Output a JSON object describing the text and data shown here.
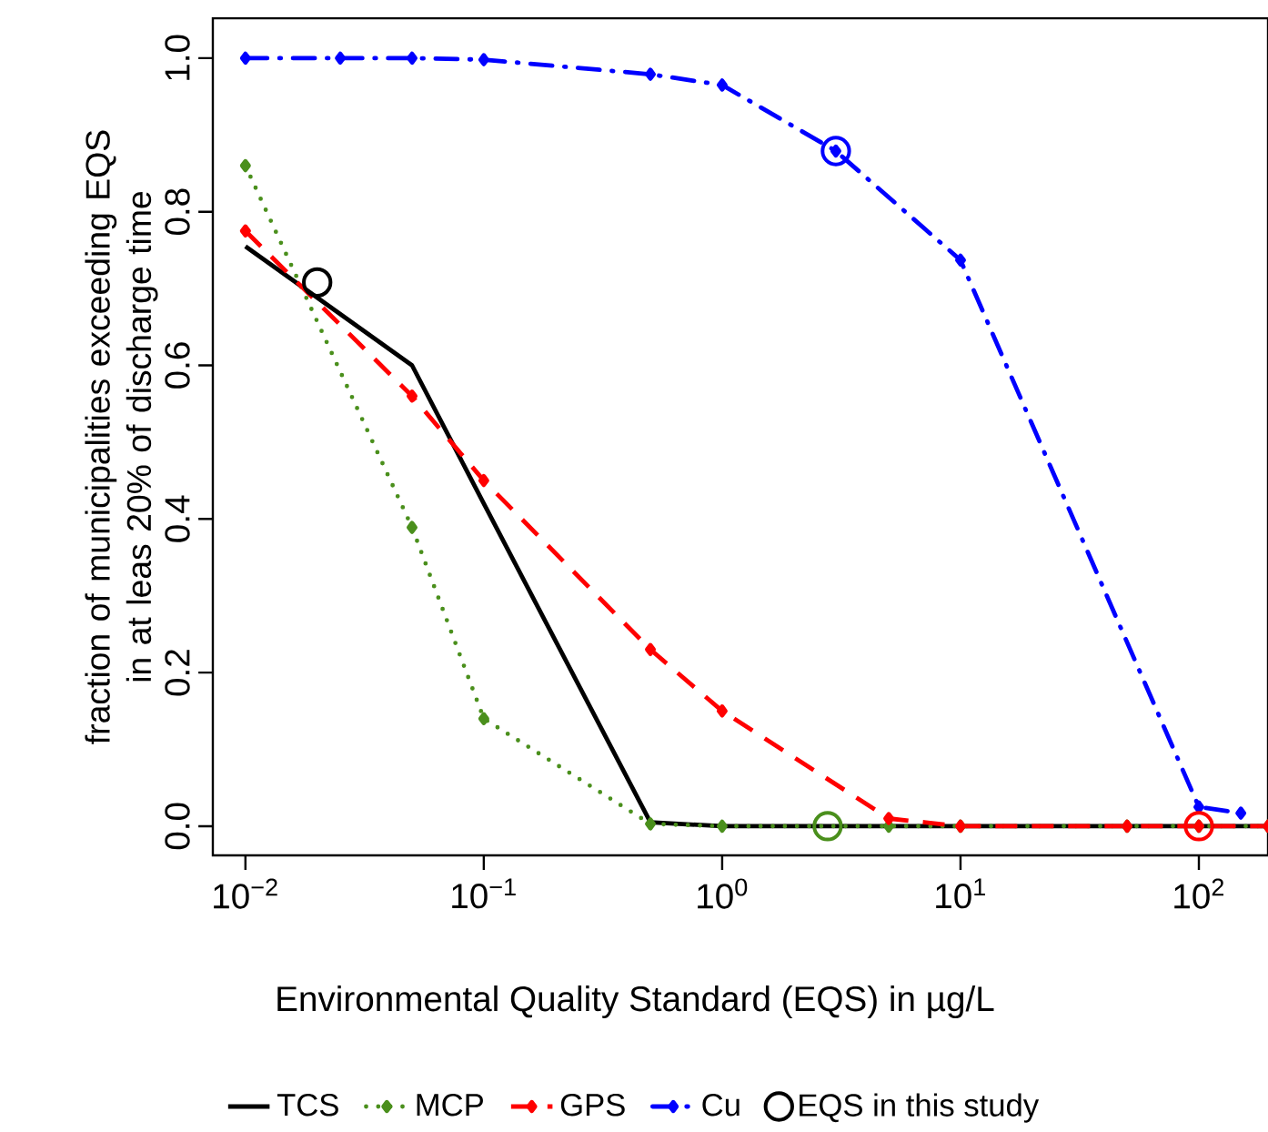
{
  "chart_data": {
    "type": "line",
    "xlabel": "Environmental Quality Standard (EQS) in µg/L",
    "ylabel": "fraction of municipalities exceeding EQS\nin at leas 20% of discharge time",
    "log": "x",
    "xlim": [
      0.0073,
      195
    ],
    "ylim": [
      -0.038,
      1.052
    ],
    "xticks": [
      {
        "value": 0.01,
        "label": "10$^{−2}$"
      },
      {
        "value": 0.1,
        "label": "10$^{−1}$"
      },
      {
        "value": 1,
        "label": "10$^{0}$"
      },
      {
        "value": 10,
        "label": "10$^{1}$"
      },
      {
        "value": 100,
        "label": "10$^{2}$"
      }
    ],
    "yticks": [
      {
        "value": 0,
        "label": "0.0"
      },
      {
        "value": 0.2,
        "label": "0.2"
      },
      {
        "value": 0.4,
        "label": "0.4"
      },
      {
        "value": 0.6,
        "label": "0.6"
      },
      {
        "value": 0.8,
        "label": "0.8"
      },
      {
        "value": 1,
        "label": "1.0"
      }
    ],
    "legend": "bottom",
    "grid": false,
    "series": [
      {
        "name": "TCS",
        "color": "#000000",
        "line_style": "solid",
        "marker": "none",
        "x": [
          0.01,
          0.05,
          0.1,
          0.5,
          1,
          5,
          10,
          50,
          100,
          195
        ],
        "values": [
          0.755,
          0.6,
          0.42,
          0.005,
          0,
          0,
          0,
          0,
          0,
          0
        ]
      },
      {
        "name": "MCP",
        "color": "#4a8f1c",
        "line_style": "dotted",
        "marker": "diamond",
        "x": [
          0.01,
          0.05,
          0.1,
          0.5,
          1,
          5,
          10,
          50,
          100,
          195
        ],
        "values": [
          0.86,
          0.389,
          0.14,
          0.003,
          0,
          0,
          0,
          0,
          0,
          0
        ]
      },
      {
        "name": "GPS",
        "color": "#ff0000",
        "line_style": "dashed",
        "marker": "diamond",
        "x": [
          0.01,
          0.05,
          0.1,
          0.5,
          1,
          5,
          10,
          50,
          100,
          195
        ],
        "values": [
          0.775,
          0.56,
          0.45,
          0.23,
          0.15,
          0.01,
          0,
          0,
          0,
          0
        ]
      },
      {
        "name": "Cu",
        "color": "#0000ff",
        "line_style": "dashdot",
        "marker": "diamond",
        "x": [
          0.01,
          0.025,
          0.05,
          0.1,
          0.5,
          1,
          3,
          10,
          100,
          150
        ],
        "values": [
          1.0,
          1.0,
          1.0,
          0.998,
          0.979,
          0.965,
          0.879,
          0.737,
          0.025,
          0.017
        ]
      },
      {
        "name": "EQS in this study",
        "type": "scatter",
        "marker": "circle",
        "color": "#000000",
        "colors": [
          "#000000",
          "#4a8f1c",
          "#ff0000",
          "#0000ff"
        ],
        "x": [
          0.02,
          2.77,
          100,
          3
        ],
        "values": [
          0.708,
          0,
          0,
          0.879
        ]
      }
    ]
  }
}
